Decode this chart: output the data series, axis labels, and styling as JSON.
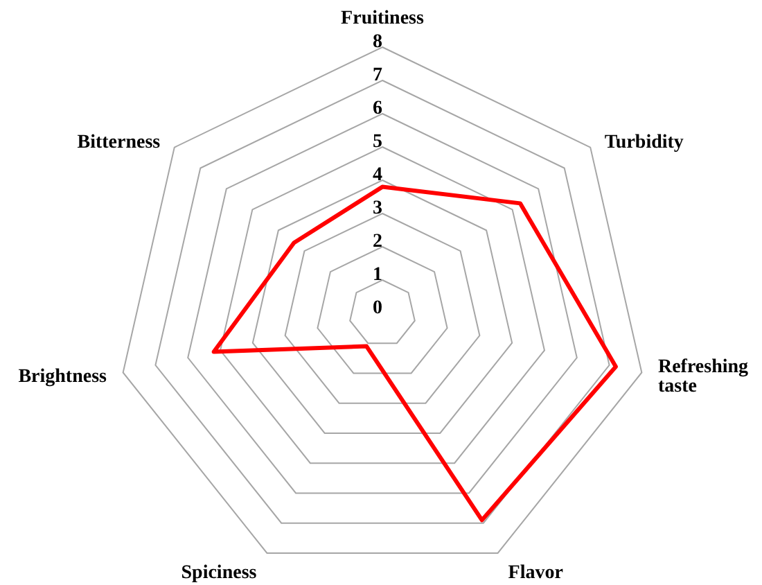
{
  "chart_data": {
    "type": "radar",
    "categories": [
      "Fruitiness",
      "Turbidity",
      "Refreshing taste",
      "Flavor",
      "Spiciness",
      "Brightness",
      "Bitterness"
    ],
    "series": [
      {
        "color": "#ff0000",
        "values": [
          3.8,
          5.3,
          7.2,
          6.9,
          1.1,
          5.2,
          3.4
        ]
      }
    ],
    "ylim": [
      0,
      8
    ],
    "yticks": [
      0,
      1,
      2,
      3,
      4,
      5,
      6,
      7,
      8
    ],
    "grid": true
  }
}
